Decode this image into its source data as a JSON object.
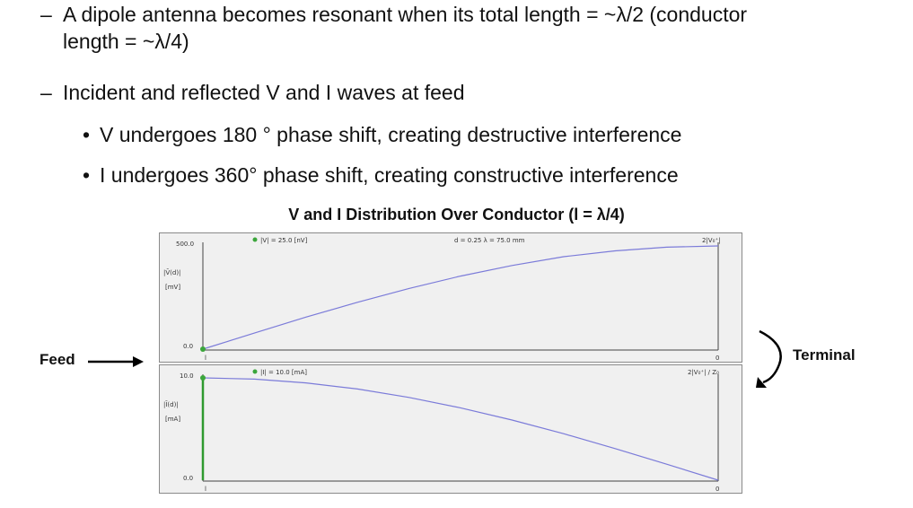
{
  "text": {
    "line1_dash": "–",
    "line1": "A dipole antenna becomes resonant when its total length = ~λ/2 (conductor",
    "line1b": "length = ~λ/4)",
    "line2_dash": "–",
    "line2": "Incident and reflected V and I waves at feed",
    "bullet1_mark": "•",
    "bullet1": "V undergoes 180 ° phase shift, creating destructive interference",
    "bullet2_mark": "•",
    "bullet2": "I undergoes 360° phase shift, creating constructive interference"
  },
  "figure": {
    "title": "V and I Distribution Over Conductor (l = λ/4)",
    "feed_label": "Feed",
    "terminal_label": "Terminal"
  },
  "chart_data": [
    {
      "type": "line",
      "legend": "|V| = 25.0  [nV]",
      "info": "d = 0.25 λ  = 75.0 mm",
      "corner_label": "2|V₀⁺|",
      "ylabel_top": "|V̄(d)|",
      "ylabel_unit": "[mV]",
      "ytick_max": "500.0",
      "ytick_min": "0.0",
      "xtick_left": "l",
      "xtick_right": "0",
      "ylim": [
        0,
        500
      ],
      "x": [
        0,
        0.1,
        0.2,
        0.3,
        0.4,
        0.5,
        0.6,
        0.7,
        0.8,
        0.9,
        1.0
      ],
      "values": [
        0,
        78,
        155,
        227,
        294,
        354,
        405,
        448,
        476,
        494,
        500
      ],
      "color": "#7b7bd9"
    },
    {
      "type": "line",
      "legend": "|I| = 10.0  [mA]",
      "corner_label": "2|V₀⁺| / Z₀",
      "ylabel_top": "|Ī(d)|",
      "ylabel_unit": "[mA]",
      "ytick_max": "10.0",
      "ytick_min": "0.0",
      "xtick_left": "l",
      "xtick_right": "0",
      "ylim": [
        0,
        10
      ],
      "x": [
        0,
        0.1,
        0.2,
        0.3,
        0.4,
        0.5,
        0.6,
        0.7,
        0.8,
        0.9,
        1.0
      ],
      "values": [
        10,
        9.88,
        9.51,
        8.91,
        8.09,
        7.07,
        5.88,
        4.54,
        3.09,
        1.56,
        0
      ],
      "color": "#7b7bd9"
    }
  ]
}
